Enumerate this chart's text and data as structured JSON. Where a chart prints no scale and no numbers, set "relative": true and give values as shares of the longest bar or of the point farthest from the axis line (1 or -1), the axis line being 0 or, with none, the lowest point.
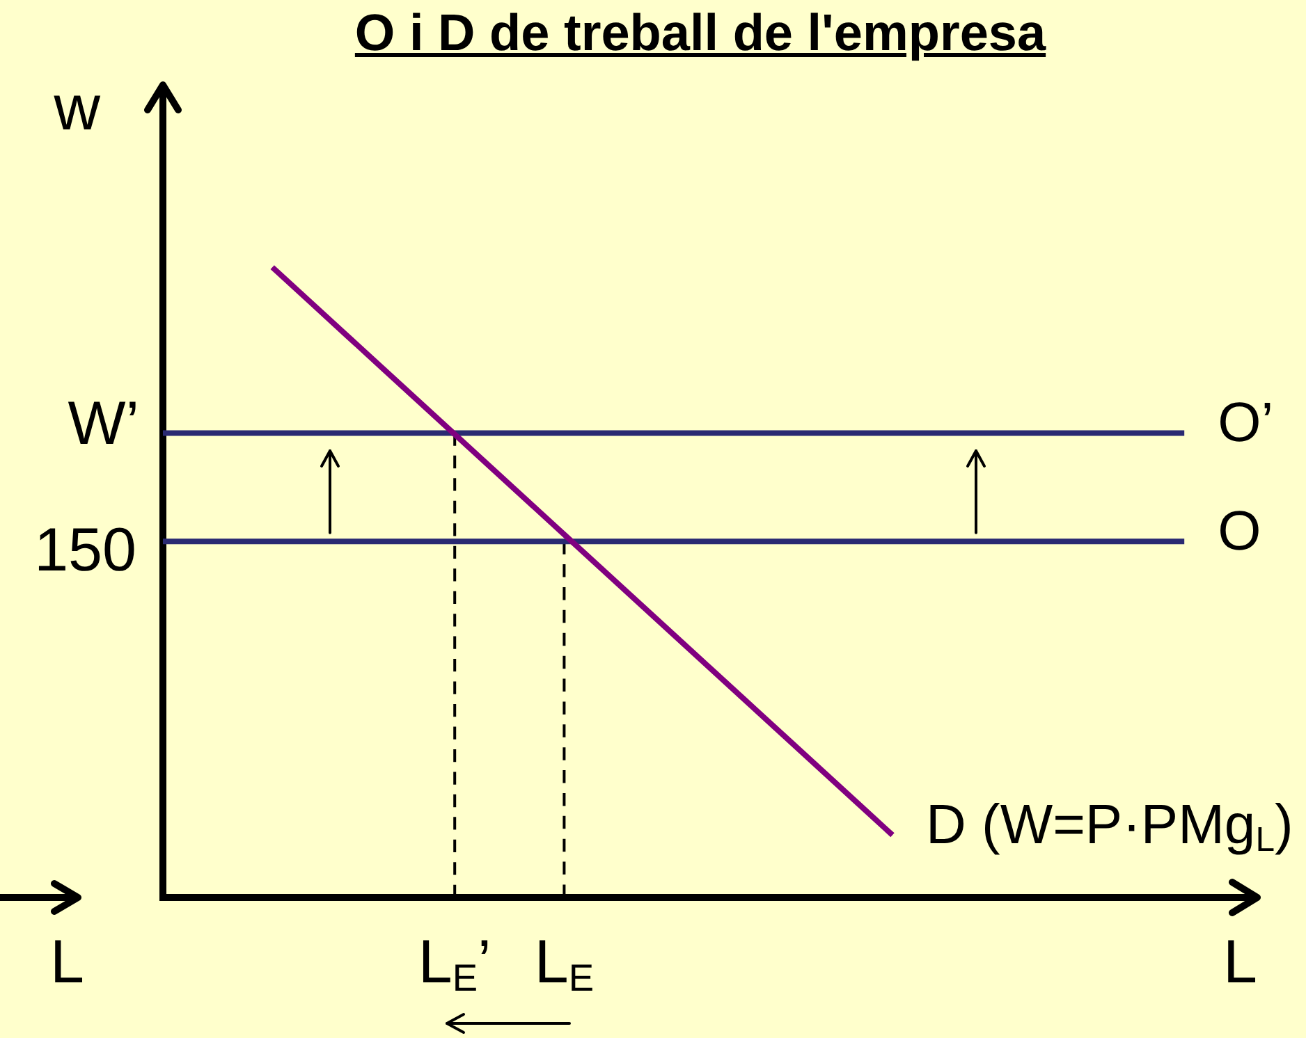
{
  "chart_data": {
    "type": "line",
    "title": "O i D de treball de l'empresa",
    "xlabel": "L",
    "ylabel": "w",
    "relative": true,
    "categories": [
      null,
      null,
      null,
      null,
      null,
      null,
      null,
      null,
      "L$_{E}$’",
      null,
      null,
      "L$_{E}$",
      null,
      null,
      null,
      null,
      null,
      null,
      null,
      null,
      null,
      null,
      null,
      null,
      null,
      null,
      null,
      null,
      null,
      null,
      null
    ],
    "series": [
      {
        "name": "D (W=P·PMg$_{L}$)",
        "color": "#800080",
        "values": [
          null,
          null,
          null,
          1.0,
          0.947,
          0.894,
          0.841,
          0.788,
          0.735,
          0.682,
          0.629,
          0.576,
          0.523,
          0.47,
          0.417,
          0.364,
          0.311,
          0.258,
          0.205,
          0.152,
          0.099,
          null,
          null,
          null,
          null,
          null,
          null,
          null,
          null,
          null,
          null
        ]
      },
      {
        "name": "O’",
        "color": "#2a2a72",
        "values": [
          0.737,
          0.737,
          0.737,
          0.737,
          0.737,
          0.737,
          0.737,
          0.737,
          0.737,
          0.737,
          0.737,
          0.737,
          0.737,
          0.737,
          0.737,
          0.737,
          0.737,
          0.737,
          0.737,
          0.737,
          0.737,
          0.737,
          0.737,
          0.737,
          0.737,
          0.737,
          0.737,
          0.737,
          0.737,
          null,
          null
        ]
      },
      {
        "name": "O",
        "color": "#2a2a72",
        "values": [
          0.565,
          0.565,
          0.565,
          0.565,
          0.565,
          0.565,
          0.565,
          0.565,
          0.565,
          0.565,
          0.565,
          0.565,
          0.565,
          0.565,
          0.565,
          0.565,
          0.565,
          0.565,
          0.565,
          0.565,
          0.565,
          0.565,
          0.565,
          0.565,
          0.565,
          0.565,
          0.565,
          0.565,
          0.565,
          null,
          null
        ]
      },
      {
        "color": "#000000",
        "x": [
          "L$_{E}$’",
          "L$_{E}$’"
        ],
        "values": [
          0,
          0.737
        ],
        "line_style": "dashed"
      },
      {
        "color": "#000000",
        "x": [
          "L$_{E}$",
          "L$_{E}$"
        ],
        "values": [
          0,
          0.565
        ],
        "line_style": "dashed"
      }
    ],
    "annotations": [
      "W’",
      "150",
      "L"
    ]
  }
}
